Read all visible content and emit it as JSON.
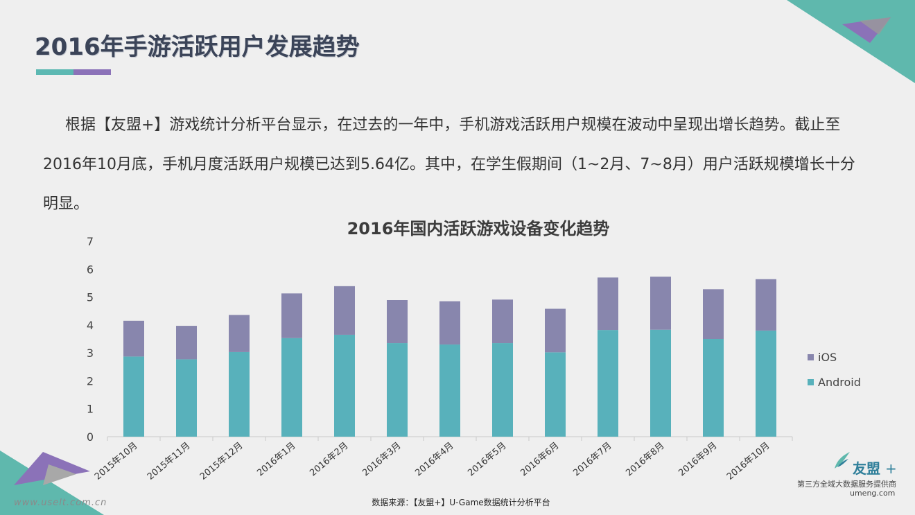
{
  "header": {
    "title": "2016年手游活跃用户发展趋势"
  },
  "intro": {
    "text": "根据【友盟+】游戏统计分析平台显示，在过去的一年中，手机游戏活跃用户规模在波动中呈现出增长趋势。截止至2016年10月底，手机月度活跃用户规模已达到5.64亿。其中，在学生假期间（1~2月、7~8月）用户活跃规模增长十分明显。"
  },
  "chart_data": {
    "type": "bar",
    "stacked": true,
    "title": "2016年国内活跃游戏设备变化趋势",
    "categories": [
      "2015年10月",
      "2015年11月",
      "2015年12月",
      "2016年1月",
      "2016年2月",
      "2016年3月",
      "2016年4月",
      "2016年5月",
      "2016年6月",
      "2016年7月",
      "2016年8月",
      "2016年9月",
      "2016年10月"
    ],
    "series": [
      {
        "name": "Android",
        "color": "#58b1bb",
        "values": [
          2.87,
          2.77,
          3.03,
          3.53,
          3.65,
          3.35,
          3.3,
          3.35,
          3.02,
          3.82,
          3.83,
          3.5,
          3.8
        ]
      },
      {
        "name": "iOS",
        "color": "#8886ad",
        "values": [
          1.28,
          1.2,
          1.33,
          1.6,
          1.74,
          1.54,
          1.55,
          1.56,
          1.56,
          1.88,
          1.9,
          1.78,
          1.84
        ]
      }
    ],
    "ylim": [
      0,
      7
    ],
    "yticks": [
      0,
      1,
      2,
      3,
      4,
      5,
      6,
      7
    ],
    "legend_position": "right",
    "grid": false
  },
  "footer": {
    "source": "数据来源：【友盟+】U-Game数据统计分析平台",
    "brand": "友盟",
    "brand_suffix": "+",
    "tagline": "第三方全域大数据服务提供商",
    "url": "umeng.com",
    "watermark": "www.uselt.com.cn"
  },
  "colors": {
    "teal": "#5cb8b2",
    "purple": "#8b72b8",
    "title": "#3b4458"
  }
}
